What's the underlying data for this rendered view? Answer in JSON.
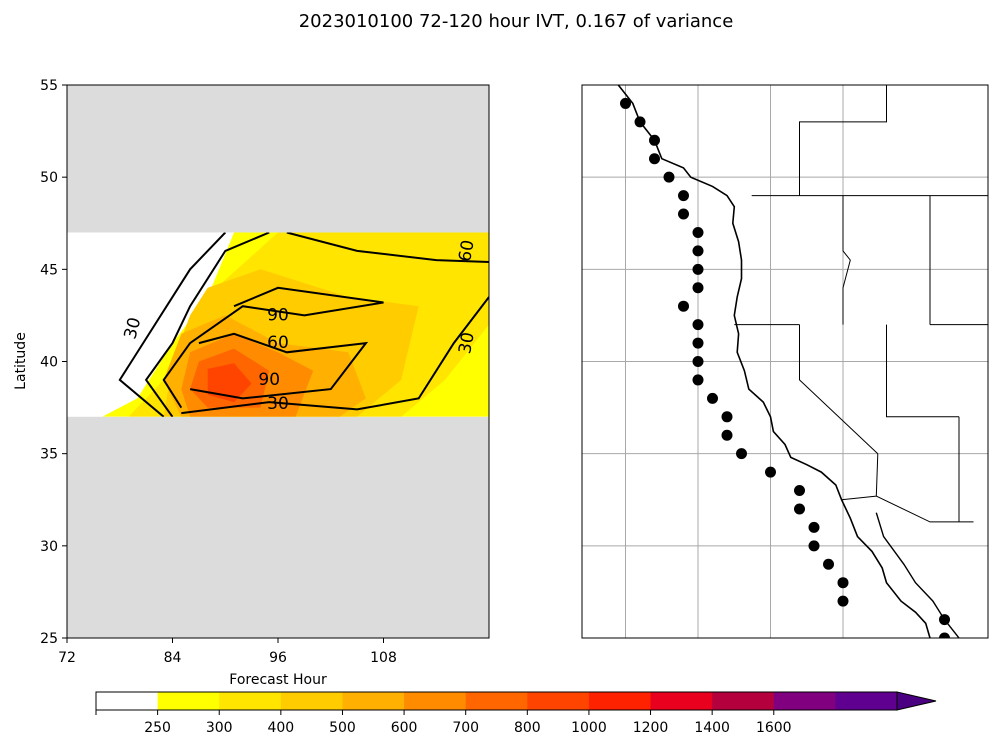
{
  "title": "2023010100 72-120 hour IVT, 0.167 of variance",
  "chart_data": [
    {
      "type": "contour",
      "xlabel": "Forecast Hour",
      "ylabel": "Latitude",
      "xlim": [
        72,
        120
      ],
      "ylim": [
        25,
        55
      ],
      "xticks": [
        "72",
        "84",
        "96",
        "108"
      ],
      "yticks": [
        "25",
        "30",
        "35",
        "40",
        "45",
        "50",
        "55"
      ],
      "masked_regions": [
        {
          "lat_from": 47,
          "lat_to": 55,
          "color": "#dcdcdc"
        },
        {
          "lat_from": 25,
          "lat_to": 37,
          "color": "#dcdcdc"
        }
      ],
      "valid_lat_range": [
        37,
        47
      ],
      "filled_levels": [
        {
          "level": 250,
          "points": [
            [
              91,
              47
            ],
            [
              120,
              47
            ],
            [
              120,
              37
            ],
            [
              76,
              37
            ],
            [
              80,
              38
            ],
            [
              84,
              41
            ],
            [
              88,
              43.5
            ]
          ]
        },
        {
          "level": 300,
          "points": [
            [
              96,
              47
            ],
            [
              120,
              47
            ],
            [
              120,
              42
            ],
            [
              115,
              39
            ],
            [
              110,
              37
            ],
            [
              79,
              37
            ],
            [
              83,
              39
            ],
            [
              86,
              42
            ],
            [
              89,
              44
            ]
          ]
        },
        {
          "level": 400,
          "points": [
            [
              88,
              44
            ],
            [
              94,
              45
            ],
            [
              104,
              43.5
            ],
            [
              112,
              43
            ],
            [
              110,
              39
            ],
            [
              105,
              37
            ],
            [
              83,
              37
            ],
            [
              84,
              40
            ],
            [
              86,
              42.5
            ]
          ]
        },
        {
          "level": 500,
          "points": [
            [
              85,
              41.5
            ],
            [
              90,
              42.5
            ],
            [
              96,
              41
            ],
            [
              104,
              40.5
            ],
            [
              106,
              38
            ],
            [
              103,
              37
            ],
            [
              85,
              37
            ],
            [
              83,
              39
            ]
          ]
        },
        {
          "level": 600,
          "points": [
            [
              86,
              40.5
            ],
            [
              91,
              41.5
            ],
            [
              96,
              40.5
            ],
            [
              100,
              39.5
            ],
            [
              98,
              37
            ],
            [
              86,
              37
            ],
            [
              85,
              38.5
            ]
          ]
        },
        {
          "level": 700,
          "points": [
            [
              87,
              40
            ],
            [
              91,
              40.7
            ],
            [
              95,
              39.5
            ],
            [
              94,
              37.5
            ],
            [
              88,
              37.5
            ],
            [
              86,
              38.5
            ]
          ]
        },
        {
          "level": 800,
          "points": [
            [
              88,
              39.6
            ],
            [
              91,
              39.9
            ],
            [
              93,
              38.8
            ],
            [
              91,
              37.8
            ],
            [
              88,
              38.2
            ]
          ]
        }
      ],
      "contours": [
        {
          "label": "30",
          "points": [
            [
              83,
              37
            ],
            [
              78,
              39
            ],
            [
              82,
              42
            ],
            [
              86,
              45
            ],
            [
              90,
              47
            ]
          ]
        },
        {
          "label": "60",
          "points": [
            [
              84,
              37
            ],
            [
              81,
              39
            ],
            [
              84,
              41
            ],
            [
              86,
              43
            ],
            [
              90,
              46
            ],
            [
              95,
              47
            ]
          ]
        },
        {
          "label": "90",
          "points": [
            [
              85,
              37.5
            ],
            [
              83,
              39
            ],
            [
              86,
              41
            ],
            [
              92,
              43
            ],
            [
              99,
              42.5
            ],
            [
              108,
              43.2
            ],
            [
              96,
              44
            ],
            [
              91,
              43
            ]
          ]
        },
        {
          "label": "60",
          "points": [
            [
              97,
              47
            ],
            [
              105,
              46
            ],
            [
              114,
              45.5
            ],
            [
              120,
              45.4
            ]
          ]
        },
        {
          "label": "90",
          "points": [
            [
              87,
              41
            ],
            [
              91,
              41.5
            ],
            [
              97,
              40.5
            ],
            [
              106,
              41
            ],
            [
              102,
              38.5
            ],
            [
              92,
              38
            ],
            [
              86,
              38.5
            ]
          ]
        },
        {
          "label": "30",
          "points": [
            [
              85,
              37.2
            ],
            [
              95,
              37.8
            ],
            [
              105,
              37.4
            ],
            [
              112,
              38
            ],
            [
              116,
              41
            ],
            [
              120,
              43.5
            ]
          ]
        }
      ],
      "contour_labels": [
        {
          "text": "30",
          "x": 79.5,
          "y": 41.8,
          "rotate": -75
        },
        {
          "text": "90",
          "x": 96,
          "y": 42.5,
          "rotate": 0
        },
        {
          "text": "60",
          "x": 96,
          "y": 41,
          "rotate": 0
        },
        {
          "text": "90",
          "x": 95,
          "y": 39,
          "rotate": 0
        },
        {
          "text": "30",
          "x": 96,
          "y": 37.7,
          "rotate": 0
        },
        {
          "text": "60",
          "x": 117.5,
          "y": 46,
          "rotate": -80
        },
        {
          "text": "30",
          "x": 117.5,
          "y": 41,
          "rotate": -80
        }
      ]
    },
    {
      "type": "map",
      "projection": "PlateCarree",
      "lon_range": [
        -135,
        -107
      ],
      "lat_range": [
        25,
        55
      ],
      "gridlines": {
        "lon": [
          -132,
          -127,
          -122,
          -117
        ],
        "lat": [
          25,
          30,
          35,
          40,
          45,
          50
        ]
      },
      "points": [
        {
          "lon": -132,
          "lat": 54
        },
        {
          "lon": -131,
          "lat": 53
        },
        {
          "lon": -130,
          "lat": 52
        },
        {
          "lon": -130,
          "lat": 51
        },
        {
          "lon": -129,
          "lat": 50
        },
        {
          "lon": -128,
          "lat": 49
        },
        {
          "lon": -128,
          "lat": 48
        },
        {
          "lon": -127,
          "lat": 47
        },
        {
          "lon": -127,
          "lat": 46
        },
        {
          "lon": -127,
          "lat": 45
        },
        {
          "lon": -127,
          "lat": 44
        },
        {
          "lon": -128,
          "lat": 43
        },
        {
          "lon": -127,
          "lat": 42
        },
        {
          "lon": -127,
          "lat": 41
        },
        {
          "lon": -127,
          "lat": 40
        },
        {
          "lon": -127,
          "lat": 39
        },
        {
          "lon": -126,
          "lat": 38
        },
        {
          "lon": -125,
          "lat": 37
        },
        {
          "lon": -125,
          "lat": 36
        },
        {
          "lon": -124,
          "lat": 35
        },
        {
          "lon": -122,
          "lat": 34
        },
        {
          "lon": -120,
          "lat": 33
        },
        {
          "lon": -120,
          "lat": 32
        },
        {
          "lon": -119,
          "lat": 31
        },
        {
          "lon": -119,
          "lat": 30
        },
        {
          "lon": -118,
          "lat": 29
        },
        {
          "lon": -117,
          "lat": 28
        },
        {
          "lon": -117,
          "lat": 27
        },
        {
          "lon": -110,
          "lat": 26
        },
        {
          "lon": -110,
          "lat": 25
        }
      ]
    },
    {
      "type": "colorbar",
      "extend": "max",
      "ticks": [
        "250",
        "300",
        "400",
        "500",
        "600",
        "700",
        "800",
        "1000",
        "1200",
        "1400",
        "1600"
      ],
      "colors": [
        "#ffffff",
        "#ffff00",
        "#ffe500",
        "#ffcc00",
        "#ffb000",
        "#ff8c00",
        "#ff6600",
        "#ff4400",
        "#ff2200",
        "#e8001e",
        "#b4003c",
        "#800080",
        "#600090",
        "#4b0082"
      ]
    }
  ]
}
